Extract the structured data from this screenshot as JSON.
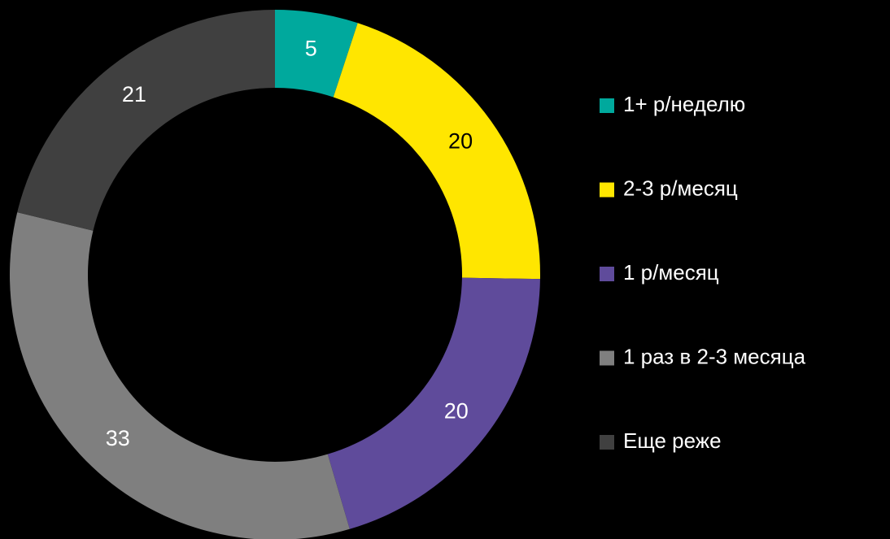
{
  "chart_data": {
    "type": "donut",
    "categories": [
      "1+ р/неделю",
      "2-3 р/месяц",
      "1 р/месяц",
      "1 раз в 2-3 месяца",
      "Еще реже"
    ],
    "values": [
      5,
      20,
      20,
      33,
      21
    ],
    "colors": [
      "#00a99d",
      "#ffe600",
      "#5f4b9b",
      "#7f7f7f",
      "#404040"
    ],
    "legend": "right"
  }
}
